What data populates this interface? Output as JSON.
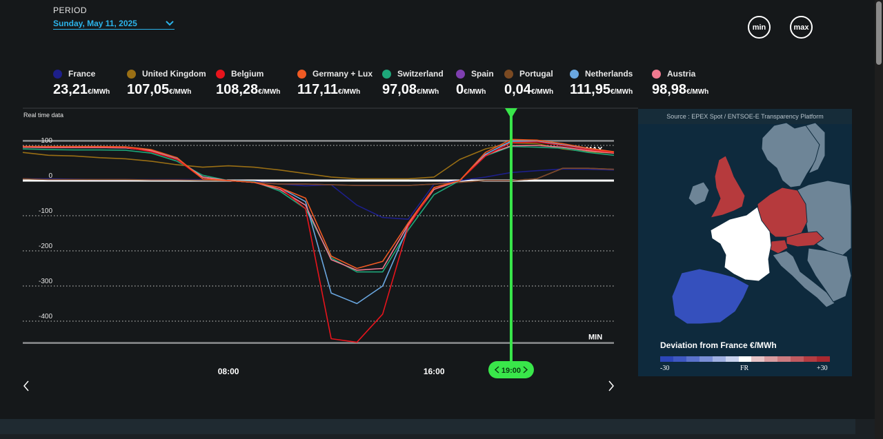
{
  "period": {
    "label": "PERIOD",
    "value": "Sunday, May 11, 2025"
  },
  "buttons": {
    "min": "min",
    "max": "max"
  },
  "legend": [
    {
      "name": "France",
      "value": "23,21",
      "unit": "€/MWh",
      "color": "#1d1f8a"
    },
    {
      "name": "United Kingdom",
      "value": "107,05",
      "unit": "€/MWh",
      "color": "#9a6f14"
    },
    {
      "name": "Belgium",
      "value": "108,28",
      "unit": "€/MWh",
      "color": "#e8141c"
    },
    {
      "name": "Germany + Lux",
      "value": "117,11",
      "unit": "€/MWh",
      "color": "#f05a23"
    },
    {
      "name": "Switzerland",
      "value": "97,08",
      "unit": "€/MWh",
      "color": "#1ea77a"
    },
    {
      "name": "Spain",
      "value": "0",
      "unit": "€/MWh",
      "color": "#7f3fb0"
    },
    {
      "name": "Portugal",
      "value": "0,04",
      "unit": "€/MWh",
      "color": "#7b4a22"
    },
    {
      "name": "Netherlands",
      "value": "111,95",
      "unit": "€/MWh",
      "color": "#6aa7e0"
    },
    {
      "name": "Austria",
      "value": "98,98",
      "unit": "€/MWh",
      "color": "#f07a90"
    }
  ],
  "chart_data": {
    "type": "line",
    "label": "Real time data",
    "x_unit": "hour",
    "x": [
      0,
      1,
      2,
      3,
      4,
      5,
      6,
      7,
      8,
      9,
      10,
      11,
      12,
      13,
      14,
      15,
      16,
      17,
      18,
      19,
      20,
      21,
      22,
      23
    ],
    "x_ticks": [
      {
        "x": 8,
        "label": "08:00"
      },
      {
        "x": 16,
        "label": "16:00"
      }
    ],
    "y_ticks": [
      100,
      0,
      -100,
      -200,
      -300,
      -400
    ],
    "ylim": [
      -465,
      135
    ],
    "max_line": 113,
    "max_label": "MAX",
    "min_line": -462,
    "min_label": "MIN",
    "cursor": {
      "x": 19,
      "label": "19:00"
    },
    "series": [
      {
        "name": "France",
        "color": "#1d1f8a",
        "values": [
          5,
          5,
          4,
          3,
          3,
          3,
          3,
          3,
          0,
          -2,
          -10,
          -15,
          -12,
          -70,
          -105,
          -110,
          -10,
          0,
          10,
          23,
          28,
          33,
          32,
          30
        ]
      },
      {
        "name": "United Kingdom",
        "color": "#9a6f14",
        "values": [
          80,
          72,
          70,
          65,
          62,
          55,
          45,
          38,
          42,
          38,
          30,
          20,
          10,
          5,
          5,
          5,
          10,
          60,
          90,
          107,
          105,
          90,
          82,
          78
        ]
      },
      {
        "name": "Belgium",
        "color": "#e8141c",
        "values": [
          97,
          96,
          96,
          96,
          95,
          82,
          60,
          5,
          0,
          -5,
          -20,
          -80,
          -450,
          -460,
          -380,
          -130,
          -20,
          0,
          70,
          108,
          110,
          100,
          88,
          80
        ]
      },
      {
        "name": "Germany + Lux",
        "color": "#f05a23",
        "values": [
          97,
          97,
          97,
          97,
          96,
          88,
          65,
          5,
          0,
          -5,
          -20,
          -50,
          -215,
          -250,
          -230,
          -120,
          -20,
          0,
          80,
          117,
          115,
          105,
          92,
          82
        ]
      },
      {
        "name": "Switzerland",
        "color": "#1ea77a",
        "values": [
          90,
          88,
          87,
          87,
          86,
          78,
          55,
          15,
          0,
          -3,
          -30,
          -80,
          -220,
          -260,
          -260,
          -140,
          -40,
          0,
          70,
          97,
          95,
          92,
          80,
          72
        ]
      },
      {
        "name": "Spain",
        "color": "#7f3fb0",
        "values": [
          5,
          3,
          3,
          3,
          3,
          2,
          2,
          1,
          0,
          -5,
          -10,
          -10,
          -12,
          -14,
          -14,
          -14,
          -10,
          -5,
          0,
          0,
          5,
          35,
          35,
          32
        ]
      },
      {
        "name": "Portugal",
        "color": "#7b4a22",
        "values": [
          5,
          3,
          3,
          3,
          3,
          2,
          2,
          1,
          0,
          -5,
          -10,
          -10,
          -12,
          -14,
          -14,
          -14,
          -10,
          -5,
          0,
          0.04,
          5,
          35,
          35,
          32
        ]
      },
      {
        "name": "Netherlands",
        "color": "#6aa7e0",
        "values": [
          95,
          94,
          94,
          94,
          93,
          85,
          62,
          10,
          0,
          -5,
          -20,
          -60,
          -320,
          -350,
          -300,
          -130,
          -20,
          0,
          75,
          112,
          112,
          102,
          90,
          80
        ]
      },
      {
        "name": "Austria",
        "color": "#f07a90",
        "values": [
          95,
          94,
          94,
          94,
          93,
          85,
          60,
          10,
          0,
          -5,
          -25,
          -70,
          -225,
          -255,
          -250,
          -125,
          -25,
          0,
          72,
          99,
          100,
          95,
          85,
          78
        ]
      }
    ]
  },
  "map": {
    "source": "Source : EPEX Spot / ENTSOE-E Transparency Platform",
    "title": "Deviation from France €/MWh",
    "scale_min": "-30",
    "scale_mid": "FR",
    "scale_max": "+30",
    "scale_colors": [
      "#2c46b8",
      "#3e58c2",
      "#5a72cc",
      "#7a8fd6",
      "#9fb0e2",
      "#c8d2ee",
      "#ffffff",
      "#e6c3c6",
      "#d89ca0",
      "#cc7b80",
      "#c05a60",
      "#b43c42",
      "#a82830"
    ]
  }
}
